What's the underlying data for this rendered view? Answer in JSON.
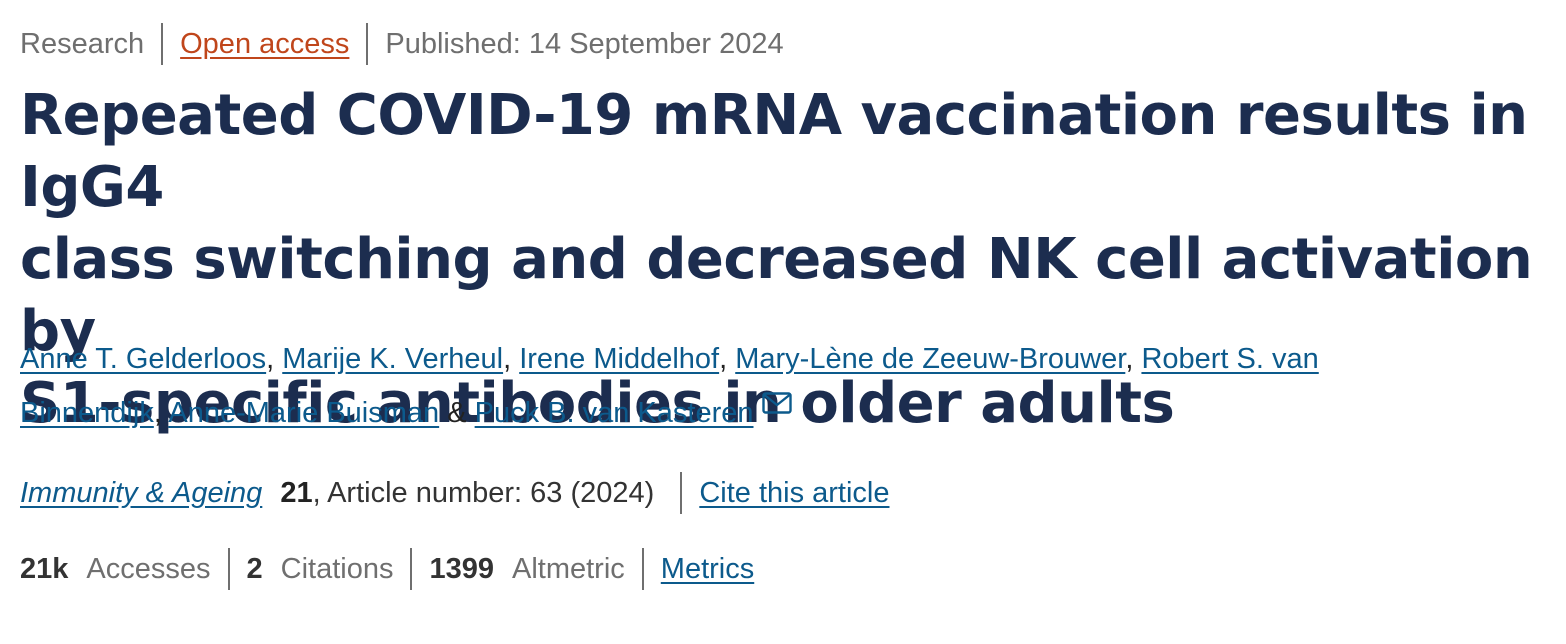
{
  "meta": {
    "article_type": "Research",
    "access": "Open access",
    "published": "Published: 14 September 2024"
  },
  "title": {
    "line1": "Repeated COVID-19 mRNA vaccination results in IgG4",
    "line2": "class switching and decreased NK cell activation by",
    "line3": "S1-specific antibodies in older adults"
  },
  "authors": {
    "list": [
      "Anne T. Gelderloos",
      "Marije K. Verheul",
      "Irene Middelhof",
      "Mary-Lène de Zeeuw-Brouwer",
      "Robert S. van Binnendijk",
      "Anne-Marie Buisman",
      "Puck B. van Kasteren"
    ],
    "comma": ",",
    "ampersand": "&",
    "line_break_part1": "Robert S. van",
    "line_break_part2": "Binnendijk"
  },
  "journal": {
    "name": "Immunity & Ageing",
    "volume": "21",
    "article_info": ", Article number: 63 (2024)",
    "cite_label": "Cite this article"
  },
  "metrics": {
    "accesses_value": "21k",
    "accesses_label": "Accesses",
    "citations_value": "2",
    "citations_label": "Citations",
    "altmetric_value": "1399",
    "altmetric_label": "Altmetric",
    "metrics_link": "Metrics"
  },
  "icons": {
    "corresponding_author": "mail-icon"
  },
  "colors": {
    "title": "#1c2d4f",
    "link": "#0c5a8c",
    "open_access": "#c0461b",
    "muted": "#6f6f6f"
  }
}
